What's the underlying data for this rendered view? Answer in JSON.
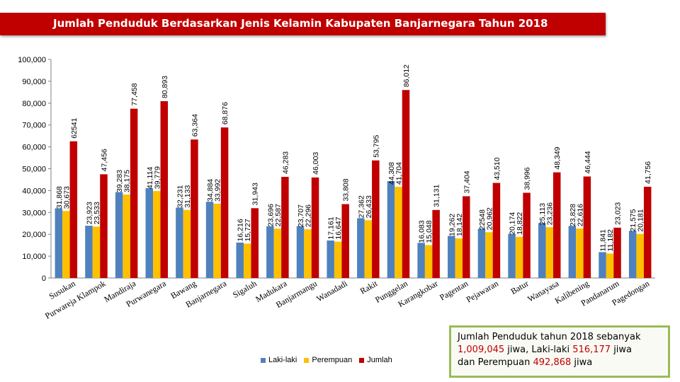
{
  "title": "Jumlah Penduduk Berdasarkan Jenis Kelamin Kabupaten Banjarnegara Tahun 2018",
  "colors": {
    "laki": "#4f81bd",
    "perempuan": "#ffc000",
    "jumlah": "#c00000",
    "title_bg": "#c00000",
    "note_border": "#9bbb59"
  },
  "chart_data": {
    "type": "bar",
    "title": "Jumlah Penduduk Berdasarkan Jenis Kelamin Kabupaten Banjarnegara Tahun 2018",
    "xlabel": "",
    "ylabel": "",
    "ylim": [
      0,
      100000
    ],
    "yticks": [
      "0",
      "10,000",
      "20,000",
      "30,000",
      "40,000",
      "50,000",
      "60,000",
      "70,000",
      "80,000",
      "90,000",
      "100,000"
    ],
    "grid": false,
    "legend": "bottom",
    "categories": [
      "Susukan",
      "Purwareja Klampok",
      "Mandiraja",
      "Purwanegara",
      "Bawang",
      "Banjarnegara",
      "Sigaluh",
      "Madukara",
      "Banjarmangu",
      "Wanadadi",
      "Rakit",
      "Punggelan",
      "Karangkobar",
      "Pagentan",
      "Pejawaran",
      "Batur",
      "Wanayasa",
      "Kalibening",
      "Pandanarum",
      "Pagedongan"
    ],
    "series": [
      {
        "name": "Laki-laki",
        "values": [
          31868,
          23923,
          39283,
          41114,
          32231,
          34884,
          16216,
          23696,
          23707,
          17161,
          27362,
          44308,
          16083,
          19262,
          22548,
          20174,
          25113,
          23828,
          11841,
          21575
        ],
        "labels": [
          "31,868",
          "23,923",
          "39,283",
          "41,114",
          "32,231",
          "34,884",
          "16,216",
          "23,696",
          "23,707",
          "17,161",
          "27,362",
          "44,308",
          "16,083",
          "19,262",
          "22548",
          "20,174",
          "25,113",
          "23,828",
          "11,841",
          "21,575"
        ]
      },
      {
        "name": "Perempuan",
        "values": [
          30673,
          23533,
          38175,
          39779,
          31133,
          33992,
          15727,
          22587,
          22296,
          16647,
          26433,
          41704,
          15048,
          18142,
          20962,
          18822,
          23236,
          22616,
          11182,
          20181
        ],
        "labels": [
          "30,673",
          "23,533",
          "38,175",
          "39,779",
          "31,133",
          "33,992",
          "15,727",
          "22,587",
          "22,296",
          "16,647",
          "26,433",
          "41,704",
          "15,048",
          "18,142",
          "20,962",
          "18,822",
          "23,236",
          "22,616",
          "11,182",
          "20,181"
        ]
      },
      {
        "name": "Jumlah",
        "values": [
          62541,
          47456,
          77458,
          80893,
          63364,
          68876,
          31943,
          46283,
          46003,
          33808,
          53795,
          86012,
          31131,
          37404,
          43510,
          38996,
          48349,
          46444,
          23023,
          41756
        ],
        "labels": [
          "62541",
          "47,456",
          "77,458",
          "80,893",
          "63,364",
          "68,876",
          "31,943",
          "46,283",
          "46,003",
          "33,808",
          "53,795",
          "86,012",
          "31,131",
          "37,404",
          "43,510",
          "38,996",
          "48,349",
          "46,444",
          "23,023",
          "41,756"
        ]
      }
    ]
  },
  "note": {
    "line1": "Jumlah Penduduk tahun 2018 sebanyak",
    "total": "1,009,045",
    "mid1": " jiwa, Laki-laki ",
    "laki": "516,177",
    "mid2": " jiwa",
    "mid3": "dan Perempuan ",
    "perempuan": "492,868",
    "end": " jiwa"
  }
}
